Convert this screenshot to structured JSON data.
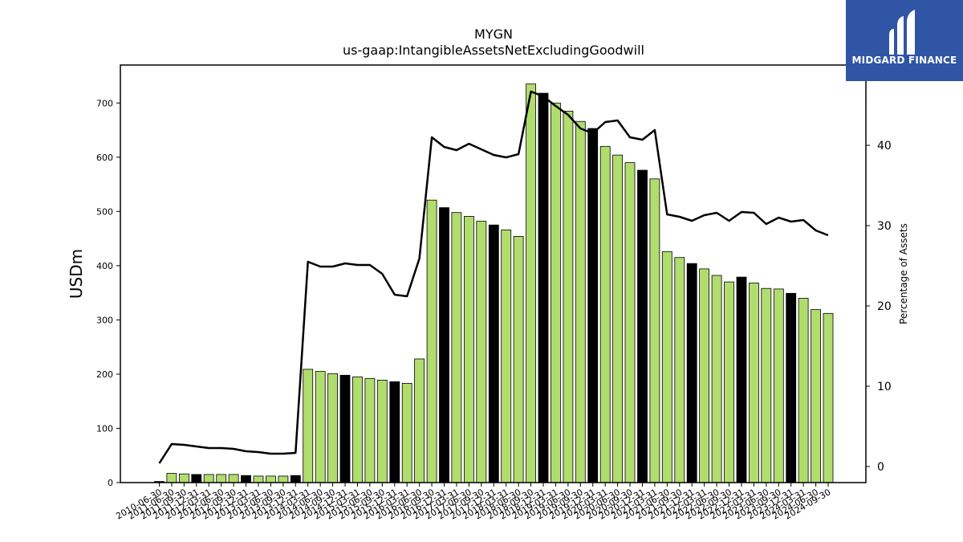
{
  "logo": {
    "text": "MIDGARD FINANCE",
    "color": "#2f55a4"
  },
  "chart_data": {
    "type": "bar",
    "title": "MYGN",
    "subtitle": "us-gaap:IntangibleAssetsNetExcludingGoodwill",
    "ylabel": "USDm",
    "y2label": "Percentage of Assets",
    "ylim": [
      0,
      770
    ],
    "y2lim": [
      -2,
      50
    ],
    "yticks": [
      0,
      100,
      200,
      300,
      400,
      500,
      600,
      700
    ],
    "y2ticks": [
      0,
      10,
      20,
      30,
      40
    ],
    "bar_colors": {
      "default": "#b0dd6e",
      "highlight": "#000000"
    },
    "line_color": "#000000",
    "categories": [
      "2010-06-30",
      "2011-06-30",
      "2011-09-30",
      "2011-12-31",
      "2012-03-31",
      "2012-06-30",
      "2012-09-30",
      "2012-12-31",
      "2013-03-31",
      "2013-06-30",
      "2013-09-30",
      "2013-12-31",
      "2014-03-31",
      "2014-06-30",
      "2014-09-30",
      "2014-12-31",
      "2015-03-31",
      "2015-06-30",
      "2015-09-30",
      "2015-12-31",
      "2016-03-31",
      "2016-06-30",
      "2016-09-30",
      "2016-12-31",
      "2017-03-31",
      "2017-06-30",
      "2017-09-30",
      "2017-12-31",
      "2018-03-31",
      "2018-06-30",
      "2018-09-30",
      "2018-12-31",
      "2019-03-31",
      "2019-06-30",
      "2019-09-30",
      "2019-12-31",
      "2020-03-31",
      "2020-06-30",
      "2020-09-30",
      "2020-12-31",
      "2021-03-31",
      "2021-06-30",
      "2021-09-30",
      "2021-12-31",
      "2022-03-31",
      "2022-06-30",
      "2022-09-30",
      "2022-12-31",
      "2023-03-31",
      "2023-06-30",
      "2023-09-30",
      "2023-12-31",
      "2024-03-31",
      "2024-06-30",
      "2024-09-30"
    ],
    "xtick_labels": [
      "2010-06-30",
      "2011-06-30",
      "2011-09-30",
      "2011-12-31",
      "2012-03-31",
      "2012-06-30",
      "2012-09-30",
      "2012-12-31",
      "2013-03-31",
      "2013-06-30",
      "2013-09-30",
      "2013-12-31",
      "2014-03-31",
      "2014-06-30",
      "2014-09-30",
      "2014-12-31",
      "2015-03-31",
      "2015-06-30",
      "2015-09-30",
      "2015-12-31",
      "2016-03-31",
      "2016-06-30",
      "2016-09-30",
      "2016-12-31",
      "2017-03-31",
      "2017-06-30",
      "2017-09-30",
      "2017-12-31",
      "2018-03-31",
      "2018-06-30",
      "2018-09-30",
      "2018-12-31",
      "2019-03-31",
      "2019-06-30",
      "2019-09-30",
      "2019-12-31",
      "2020-03-31",
      "2020-06-30",
      "2020-09-30",
      "2020-12-31",
      "2021-03-31",
      "2021-06-30",
      "2021-09-30",
      "2021-12-31",
      "2022-03-31",
      "2022-06-30",
      "2022-09-30",
      "2022-12-31",
      "2023-03-31",
      "2023-06-30",
      "2023-09-30",
      "2023-12-31",
      "2024-03-31",
      "2024-06-30",
      "2024-09-30"
    ],
    "series": [
      {
        "type": "bar",
        "axis": "left",
        "values": [
          2,
          17,
          16,
          15,
          15,
          15,
          15,
          13,
          12,
          12,
          12,
          13,
          209,
          205,
          201,
          198,
          195,
          192,
          189,
          186,
          183,
          228,
          521,
          507,
          498,
          491,
          482,
          475,
          466,
          454,
          735,
          718,
          700,
          685,
          666,
          653,
          620,
          604,
          590,
          576,
          560,
          426,
          415,
          404,
          394,
          382,
          370,
          379,
          368,
          358,
          357,
          349,
          340,
          319,
          312
        ],
        "highlight": [
          true,
          false,
          false,
          true,
          false,
          false,
          false,
          true,
          false,
          false,
          false,
          true,
          false,
          false,
          false,
          true,
          false,
          false,
          false,
          true,
          false,
          false,
          false,
          true,
          false,
          false,
          false,
          true,
          false,
          false,
          false,
          true,
          false,
          false,
          false,
          true,
          false,
          false,
          false,
          true,
          false,
          false,
          false,
          true,
          false,
          false,
          false,
          true,
          false,
          false,
          false,
          true,
          false,
          false,
          false
        ]
      },
      {
        "type": "line",
        "axis": "right",
        "values": [
          0.4,
          2.8,
          2.7,
          2.5,
          2.3,
          2.3,
          2.2,
          1.9,
          1.8,
          1.6,
          1.6,
          1.7,
          25.5,
          24.9,
          24.9,
          25.3,
          25.1,
          25.1,
          24.0,
          21.4,
          21.2,
          25.9,
          41.0,
          39.8,
          39.4,
          40.2,
          39.5,
          38.8,
          38.5,
          38.9,
          46.7,
          46.1,
          44.9,
          43.8,
          42.1,
          41.5,
          42.9,
          43.1,
          41.0,
          40.7,
          41.9,
          31.4,
          31.1,
          30.6,
          31.3,
          31.6,
          30.6,
          31.7,
          31.6,
          30.2,
          31.0,
          30.5,
          30.7,
          29.4,
          28.8
        ]
      }
    ]
  }
}
